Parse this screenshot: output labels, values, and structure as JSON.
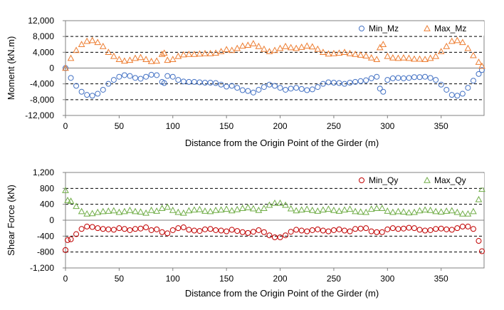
{
  "chart_data": [
    {
      "type": "scatter",
      "xlabel": "Distance from the Origin Point of the Girder (m)",
      "ylabel": "Moment (kN.m)",
      "xlim": [
        0,
        390
      ],
      "ylim": [
        -12000,
        12000
      ],
      "xticks": [
        "0",
        "50",
        "100",
        "150",
        "200",
        "250",
        "300",
        "350"
      ],
      "xtick_values": [
        0,
        50,
        100,
        150,
        200,
        250,
        300,
        350
      ],
      "yticks": [
        "12,000",
        "8,000",
        "4,000",
        "0",
        "-4,000",
        "-8,000",
        "-12,000"
      ],
      "ytick_values": [
        12000,
        8000,
        4000,
        0,
        -4000,
        -8000,
        -12000
      ],
      "grid": "horizontal-dashed",
      "legend_position": "top-right",
      "series": [
        {
          "name": "Min_Mz",
          "marker": "circle",
          "color": "#4472C4",
          "x": [
            0,
            5,
            10,
            15,
            20,
            25,
            30,
            35,
            40,
            45,
            50,
            55,
            60,
            65,
            70,
            75,
            80,
            85,
            90,
            92,
            95,
            100,
            105,
            110,
            115,
            120,
            125,
            130,
            135,
            140,
            145,
            150,
            155,
            160,
            165,
            170,
            175,
            180,
            185,
            190,
            195,
            200,
            205,
            210,
            215,
            220,
            225,
            230,
            235,
            240,
            245,
            250,
            255,
            260,
            265,
            270,
            275,
            280,
            285,
            290,
            293,
            296,
            300,
            305,
            310,
            315,
            320,
            325,
            330,
            335,
            340,
            345,
            350,
            355,
            360,
            365,
            370,
            375,
            380,
            385,
            388
          ],
          "y": [
            0,
            -2500,
            -4500,
            -6000,
            -6800,
            -7000,
            -6500,
            -5500,
            -4000,
            -3000,
            -2200,
            -1800,
            -2000,
            -2500,
            -2700,
            -2200,
            -1700,
            -1800,
            -3500,
            -3800,
            -2000,
            -2200,
            -3000,
            -3400,
            -3500,
            -3500,
            -3600,
            -3700,
            -3700,
            -3800,
            -4200,
            -4700,
            -4500,
            -5000,
            -5600,
            -5800,
            -6200,
            -5500,
            -4800,
            -4200,
            -4500,
            -5000,
            -5500,
            -5200,
            -5000,
            -5300,
            -5600,
            -5400,
            -4800,
            -4000,
            -3600,
            -3700,
            -3800,
            -4000,
            -3700,
            -3500,
            -3300,
            -3100,
            -2600,
            -2200,
            -5200,
            -6000,
            -3000,
            -2600,
            -2500,
            -2600,
            -2500,
            -2300,
            -2300,
            -2200,
            -2500,
            -3000,
            -4200,
            -5500,
            -6800,
            -7000,
            -6500,
            -5000,
            -3200,
            -1500,
            -500
          ]
        },
        {
          "name": "Max_Mz",
          "marker": "triangle",
          "color": "#ED7D31",
          "x": [
            0,
            5,
            10,
            15,
            20,
            25,
            30,
            35,
            40,
            45,
            50,
            55,
            60,
            65,
            70,
            75,
            80,
            85,
            90,
            92,
            95,
            100,
            105,
            110,
            115,
            120,
            125,
            130,
            135,
            140,
            145,
            150,
            155,
            160,
            165,
            170,
            175,
            180,
            185,
            190,
            195,
            200,
            205,
            210,
            215,
            220,
            225,
            230,
            235,
            240,
            245,
            250,
            255,
            260,
            265,
            270,
            275,
            280,
            285,
            290,
            293,
            296,
            300,
            305,
            310,
            315,
            320,
            325,
            330,
            335,
            340,
            345,
            350,
            355,
            360,
            365,
            370,
            375,
            380,
            385,
            388
          ],
          "y": [
            0,
            2500,
            4500,
            6000,
            6800,
            7000,
            6500,
            5500,
            4000,
            3000,
            2200,
            1800,
            2000,
            2500,
            2700,
            2200,
            1700,
            1800,
            3500,
            3800,
            2000,
            2200,
            3000,
            3400,
            3500,
            3500,
            3600,
            3700,
            3700,
            3800,
            4200,
            4700,
            4500,
            5000,
            5600,
            5800,
            6200,
            5500,
            4800,
            4200,
            4500,
            5000,
            5500,
            5200,
            5000,
            5300,
            5600,
            5400,
            4800,
            4000,
            3600,
            3700,
            3800,
            4000,
            3700,
            3500,
            3300,
            3100,
            2600,
            2200,
            5200,
            6000,
            3000,
            2600,
            2500,
            2600,
            2500,
            2300,
            2300,
            2200,
            2500,
            3000,
            4200,
            5500,
            6800,
            7000,
            6500,
            5000,
            3200,
            1500,
            500
          ]
        }
      ]
    },
    {
      "type": "scatter",
      "xlabel": "Distance from the Origin Point of the Girder (m)",
      "ylabel": "Shear Force (kN)",
      "xlim": [
        0,
        390
      ],
      "ylim": [
        -1200,
        1200
      ],
      "xticks": [
        "0",
        "50",
        "100",
        "150",
        "200",
        "250",
        "300",
        "350"
      ],
      "xtick_values": [
        0,
        50,
        100,
        150,
        200,
        250,
        300,
        350
      ],
      "yticks": [
        "1,200",
        "800",
        "400",
        "0",
        "-400",
        "-800",
        "-1,200"
      ],
      "ytick_values": [
        1200,
        800,
        400,
        0,
        -400,
        -800,
        -1200
      ],
      "grid": "horizontal-dashed",
      "legend_position": "top-right",
      "series": [
        {
          "name": "Min_Qy",
          "marker": "circle",
          "color": "#C00000",
          "x": [
            0,
            2,
            5,
            10,
            15,
            20,
            25,
            30,
            35,
            40,
            45,
            50,
            55,
            60,
            65,
            70,
            75,
            80,
            85,
            90,
            95,
            100,
            105,
            110,
            115,
            120,
            125,
            130,
            135,
            140,
            145,
            150,
            155,
            160,
            165,
            170,
            175,
            180,
            185,
            190,
            195,
            200,
            205,
            210,
            215,
            220,
            225,
            230,
            235,
            240,
            245,
            250,
            255,
            260,
            265,
            270,
            275,
            280,
            285,
            290,
            295,
            300,
            305,
            310,
            315,
            320,
            325,
            330,
            335,
            340,
            345,
            350,
            355,
            360,
            365,
            370,
            375,
            380,
            385,
            388
          ],
          "y": [
            -750,
            -500,
            -480,
            -350,
            -220,
            -160,
            -170,
            -200,
            -220,
            -230,
            -240,
            -200,
            -220,
            -250,
            -220,
            -210,
            -180,
            -250,
            -230,
            -300,
            -330,
            -250,
            -200,
            -180,
            -240,
            -260,
            -270,
            -230,
            -220,
            -250,
            -260,
            -280,
            -240,
            -270,
            -300,
            -320,
            -290,
            -250,
            -300,
            -380,
            -430,
            -430,
            -380,
            -290,
            -240,
            -260,
            -280,
            -250,
            -230,
            -260,
            -280,
            -250,
            -230,
            -260,
            -280,
            -220,
            -210,
            -200,
            -280,
            -300,
            -300,
            -230,
            -200,
            -220,
            -210,
            -190,
            -200,
            -240,
            -260,
            -250,
            -220,
            -210,
            -230,
            -240,
            -200,
            -160,
            -160,
            -220,
            -520,
            -780
          ]
        },
        {
          "name": "Max_Qy",
          "marker": "triangle",
          "color": "#70AD47",
          "x": [
            0,
            2,
            5,
            10,
            15,
            20,
            25,
            30,
            35,
            40,
            45,
            50,
            55,
            60,
            65,
            70,
            75,
            80,
            85,
            90,
            95,
            100,
            105,
            110,
            115,
            120,
            125,
            130,
            135,
            140,
            145,
            150,
            155,
            160,
            165,
            170,
            175,
            180,
            185,
            190,
            195,
            200,
            205,
            210,
            215,
            220,
            225,
            230,
            235,
            240,
            245,
            250,
            255,
            260,
            265,
            270,
            275,
            280,
            285,
            290,
            295,
            300,
            305,
            310,
            315,
            320,
            325,
            330,
            335,
            340,
            345,
            350,
            355,
            360,
            365,
            370,
            375,
            380,
            385,
            388
          ],
          "y": [
            750,
            500,
            480,
            350,
            220,
            160,
            170,
            200,
            220,
            230,
            240,
            200,
            220,
            250,
            220,
            210,
            180,
            250,
            230,
            300,
            330,
            250,
            200,
            180,
            240,
            260,
            270,
            230,
            220,
            250,
            260,
            280,
            240,
            270,
            300,
            320,
            290,
            250,
            300,
            380,
            430,
            430,
            380,
            290,
            240,
            260,
            280,
            250,
            230,
            260,
            280,
            250,
            230,
            260,
            280,
            220,
            210,
            200,
            280,
            300,
            300,
            230,
            200,
            220,
            210,
            190,
            200,
            240,
            260,
            250,
            220,
            210,
            230,
            240,
            200,
            160,
            160,
            220,
            520,
            780
          ]
        }
      ]
    }
  ]
}
